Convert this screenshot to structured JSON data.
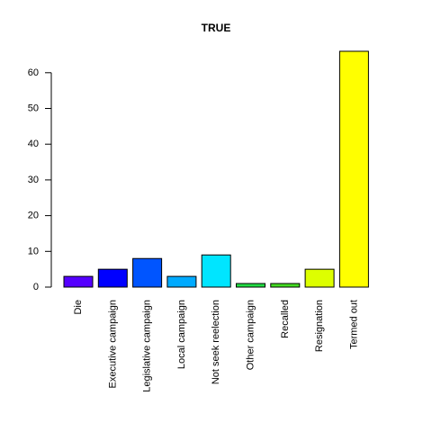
{
  "chart_data": {
    "type": "bar",
    "title": "TRUE",
    "xlabel": "",
    "ylabel": "",
    "categories": [
      "Die",
      "Executive campaign",
      "Legislative campaign",
      "Local campaign",
      "Not seek reelection",
      "Other campaign",
      "Recalled",
      "Resignation",
      "Termed out"
    ],
    "values": [
      3,
      5,
      8,
      3,
      9,
      1,
      1,
      5,
      66
    ],
    "colors": [
      "#5500FF",
      "#0000FF",
      "#0055FF",
      "#00AAFF",
      "#00E5FF",
      "#22DD44",
      "#44DD22",
      "#DDFF00",
      "#FFFF00"
    ],
    "ylim": [
      0,
      66
    ],
    "yticks": [
      0,
      10,
      20,
      30,
      40,
      50,
      60
    ],
    "grid": false,
    "legend": "none"
  }
}
